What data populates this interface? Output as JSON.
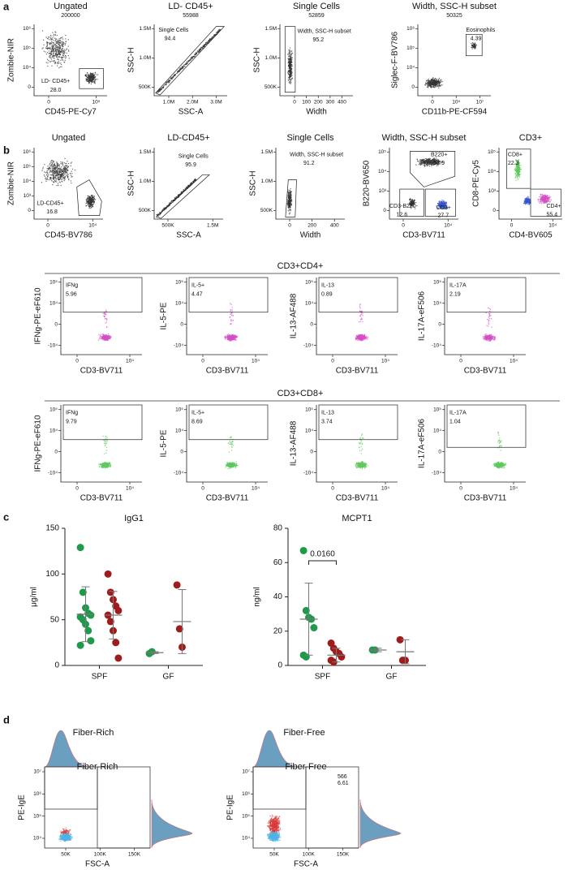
{
  "figure": {
    "panel_labels": [
      "a",
      "b",
      "c",
      "d"
    ],
    "a": {
      "plots": [
        {
          "title": "Ungated",
          "count": "200000",
          "ylabel": "Zombie-NIR",
          "xlabel": "CD45-PE-Cy7",
          "yticks": [
            "10⁶",
            "10⁵",
            "10⁴",
            "0"
          ],
          "xticks": [
            "0",
            "10⁵"
          ],
          "gates": [
            {
              "label": "LD- CD45+",
              "value": "28.0"
            }
          ]
        },
        {
          "title": "LD- CD45+",
          "count": "55988",
          "ylabel": "SSC-H",
          "xlabel": "SSC-A",
          "yticks": [
            "1.5M",
            "1.0M",
            "500K"
          ],
          "xticks": [
            "1.0M",
            "2.0M",
            "3.0M"
          ],
          "gates": [
            {
              "label": "Single Cells",
              "value": "94.4"
            }
          ]
        },
        {
          "title": "Single Cells",
          "count": "52859",
          "ylabel": "SSC-H",
          "xlabel": "Width",
          "yticks": [
            "1.5M",
            "1.0M",
            "500K"
          ],
          "xticks": [
            "0",
            "100",
            "200",
            "300",
            "400"
          ],
          "gates": [
            {
              "label": "Width, SSC-H subset",
              "value": "95.2"
            }
          ]
        },
        {
          "title": "Width, SSC-H subset",
          "count": "50325",
          "ylabel": "Siglec-F-BV786",
          "xlabel": "CD11b-PE-CF594",
          "yticks": [
            "10⁶",
            "10⁵",
            "10⁴",
            "0"
          ],
          "xticks": [
            "0",
            "10⁵",
            "10⁷"
          ],
          "gates": [
            {
              "label": "Eosinophils",
              "value": "4.39"
            }
          ]
        }
      ]
    },
    "b": {
      "row1": [
        {
          "title": "Ungated",
          "ylabel": "Zombie-NIR",
          "xlabel": "CD45-BV786",
          "yticks": [
            "10⁶",
            "10⁵",
            "10⁴",
            "10³",
            "0"
          ],
          "xticks": [
            "0",
            "10⁴"
          ],
          "gates": [
            {
              "label": "LD-CD45+",
              "value": "16.8"
            }
          ]
        },
        {
          "title": "LD-CD45+",
          "ylabel": "SSC-H",
          "xlabel": "SSC-A",
          "yticks": [
            "1.5M",
            "1.0M",
            "500K"
          ],
          "xticks": [
            "500K",
            "1.5M"
          ],
          "gates": [
            {
              "label": "Single Cells",
              "value": "95.9"
            }
          ]
        },
        {
          "title": "Single Cells",
          "ylabel": "SSC-H",
          "xlabel": "Width",
          "yticks": [
            "1.5M",
            "1.0M",
            "500K"
          ],
          "xticks": [
            "0",
            "200",
            "400"
          ],
          "gates": [
            {
              "label": "Width, SSC-H subset",
              "value": "91.2"
            }
          ]
        },
        {
          "title": "Width, SSC-H subset",
          "ylabel": "B220-BV650",
          "xlabel": "CD3-BV711",
          "yticks": [
            "10⁵",
            "10⁴",
            "10³",
            "0"
          ],
          "xticks": [
            "0",
            "10⁴"
          ],
          "gates": [
            {
              "label": "B220+",
              "value": "53.9"
            },
            {
              "label": "CD3-B220-",
              "value": "12.6"
            },
            {
              "label": "CD3+",
              "value": "27.7"
            }
          ]
        },
        {
          "title": "CD3+",
          "ylabel": "CD8-PE-Cy5",
          "xlabel": "CD4-BV605",
          "yticks": [
            "10⁵",
            "10⁴",
            "10³",
            "0"
          ],
          "xticks": [
            "0",
            "10⁴"
          ],
          "gates": [
            {
              "label": "CD8+",
              "value": "22.3"
            },
            {
              "label": "CD4+",
              "value": "55.4"
            }
          ]
        }
      ],
      "cd4_header": "CD3+CD4+",
      "cd4": [
        {
          "ylabel": "IFNg-PE-eF610",
          "xlabel": "CD3-BV711",
          "yticks": [
            "10⁵",
            "10⁴",
            "0",
            "-10⁴"
          ],
          "xticks": [
            "0",
            "10⁴"
          ],
          "gates": [
            {
              "label": "IFNg",
              "value": "5.96"
            }
          ]
        },
        {
          "ylabel": "IL-5-PE",
          "xlabel": "CD3-BV711",
          "yticks": [
            "10⁵",
            "10⁴",
            "0",
            "-10⁴"
          ],
          "xticks": [
            "0",
            "10⁴"
          ],
          "gates": [
            {
              "label": "IL-5+",
              "value": "4.47"
            }
          ]
        },
        {
          "ylabel": "IL-13-AF488",
          "xlabel": "CD3-BV711",
          "yticks": [
            "10⁵",
            "10⁴",
            "0",
            "-10⁴"
          ],
          "xticks": [
            "0",
            "10⁴"
          ],
          "gates": [
            {
              "label": "IL-13",
              "value": "0.89"
            }
          ]
        },
        {
          "ylabel": "IL-17A-eF506",
          "xlabel": "CD3-BV711",
          "yticks": [
            "10⁵",
            "10⁴",
            "0",
            "-10⁴"
          ],
          "xticks": [
            "0",
            "10⁴"
          ],
          "gates": [
            {
              "label": "IL-17A",
              "value": "2.19"
            }
          ]
        }
      ],
      "cd8_header": "CD3+CD8+",
      "cd8": [
        {
          "ylabel": "IFNg-PE-eF610",
          "xlabel": "CD3-BV711",
          "yticks": [
            "10⁵",
            "10⁴",
            "0",
            "-10⁴"
          ],
          "xticks": [
            "0",
            "10⁴"
          ],
          "gates": [
            {
              "label": "IFNg",
              "value": "9.79"
            }
          ]
        },
        {
          "ylabel": "IL-5-PE",
          "xlabel": "CD3-BV711",
          "yticks": [
            "10⁵",
            "10⁴",
            "0",
            "-10⁴"
          ],
          "xticks": [
            "0",
            "10⁴"
          ],
          "gates": [
            {
              "label": "IL-5+",
              "value": "8.69"
            }
          ]
        },
        {
          "ylabel": "IL-13-AF488",
          "xlabel": "CD3-BV711",
          "yticks": [
            "10⁵",
            "10⁴",
            "0",
            "-10⁴"
          ],
          "xticks": [
            "0",
            "10⁴"
          ],
          "gates": [
            {
              "label": "IL-13",
              "value": "3.74"
            }
          ]
        },
        {
          "ylabel": "IL-17A-eF506",
          "xlabel": "CD3-BV711",
          "yticks": [
            "10⁵",
            "10⁴",
            "0",
            "-10⁴"
          ],
          "xticks": [
            "0",
            "10⁴"
          ],
          "gates": [
            {
              "label": "IL-17A",
              "value": "1.04"
            }
          ]
        }
      ]
    },
    "d": {
      "plots": [
        {
          "title": "Fiber-Rich",
          "ylabel": "PE-IgE",
          "xlabel": "FSC-A",
          "yticks": [
            "10⁷",
            "10⁶",
            "10⁵",
            "10⁴"
          ],
          "xticks": [
            "50K",
            "100K",
            "150K"
          ],
          "gates": []
        },
        {
          "title": "Fiber-Free",
          "ylabel": "PE-IgE",
          "xlabel": "FSC-A",
          "yticks": [
            "10⁷",
            "10⁶",
            "10⁵",
            "10⁴"
          ],
          "xticks": [
            "50K",
            "100K",
            "150K"
          ],
          "gates": [
            {
              "label": "566",
              "value": "6.61"
            }
          ]
        }
      ]
    }
  },
  "chart_data": [
    {
      "type": "strip",
      "title": "IgG1",
      "ylabel": "μg/ml",
      "categories": [
        "SPF",
        "GF"
      ],
      "ylim": [
        0,
        150
      ],
      "yticks": [
        0,
        50,
        100,
        150
      ],
      "series": [
        {
          "color": "#1f9a4b",
          "values": [
            [
              129,
              80,
              63,
              57,
              55,
              53,
              50,
              45,
              38,
              27,
              22
            ],
            [
              13,
              15
            ]
          ],
          "mean": [
            56,
            14
          ],
          "sd": [
            30,
            1
          ]
        },
        {
          "color": "#9e1c1c",
          "values": [
            [
              100,
              80,
              72,
              65,
              60,
              55,
              48,
              38,
              25,
              8
            ],
            [
              88,
              40,
              20
            ]
          ],
          "mean": [
            55,
            48
          ],
          "sd": [
            26,
            35
          ]
        }
      ]
    },
    {
      "type": "strip",
      "title": "MCPT1",
      "ylabel": "ng/ml",
      "categories": [
        "SPF",
        "GF"
      ],
      "ylim": [
        0,
        80
      ],
      "yticks": [
        0,
        20,
        40,
        60,
        80
      ],
      "annotation": "0.0160",
      "series": [
        {
          "color": "#1f9a4b",
          "values": [
            [
              67,
              32,
              28,
              27,
              22,
              6,
              5
            ],
            [
              9,
              9
            ]
          ],
          "mean": [
            27,
            9
          ],
          "sd": [
            21,
            1
          ]
        },
        {
          "color": "#9e1c1c",
          "values": [
            [
              13,
              10,
              8,
              7,
              5,
              3,
              2
            ],
            [
              15,
              3,
              3
            ]
          ],
          "mean": [
            6,
            8
          ],
          "sd": [
            4,
            7
          ]
        }
      ]
    }
  ]
}
